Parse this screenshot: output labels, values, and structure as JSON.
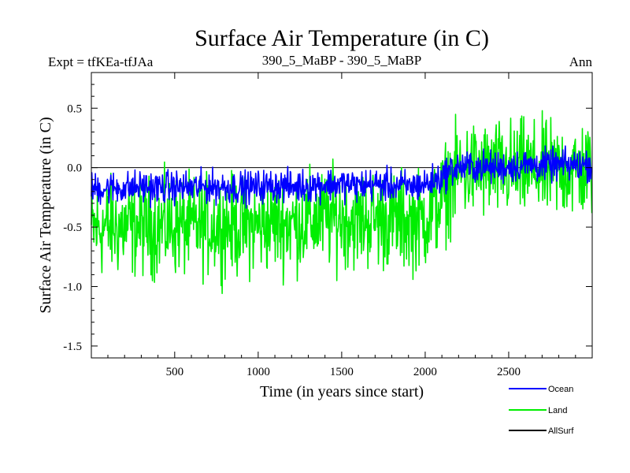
{
  "header": {
    "left": "Expt = tfKEa-tfJAa",
    "center": "390_5_MaBP - 390_5_MaBP",
    "right": "Ann"
  },
  "chart_data": {
    "type": "line",
    "title": "Surface Air Temperature (in C)",
    "xlabel": "Time (in years since start)",
    "ylabel": "Surface Air Temperature (in C)",
    "xlim": [
      1,
      3000
    ],
    "ylim": [
      -1.6,
      0.8
    ],
    "xticks": [
      500,
      1000,
      1500,
      2000,
      2500
    ],
    "xtick_labels": [
      "500",
      "1000",
      "1500",
      "2000",
      "2500"
    ],
    "yticks": [
      -1.5,
      -1.0,
      -0.5,
      0.0,
      0.5
    ],
    "ytick_labels": [
      "-1.5",
      "-1.0",
      "-0.5",
      "0.0",
      "0.5"
    ],
    "reference_line": 0.0,
    "grid": false,
    "legend_position": "bottom-right",
    "series": [
      {
        "name": "Ocean",
        "color": "#0000ff",
        "x": [
          1,
          100,
          200,
          300,
          400,
          500,
          600,
          700,
          800,
          900,
          1000,
          1100,
          1200,
          1300,
          1400,
          1500,
          1600,
          1700,
          1800,
          1900,
          2000,
          2100,
          2150,
          2200,
          2300,
          2400,
          2500,
          2600,
          2700,
          2800,
          2900,
          3000
        ],
        "mean": [
          -0.18,
          -0.17,
          -0.17,
          -0.16,
          -0.17,
          -0.16,
          -0.17,
          -0.16,
          -0.16,
          -0.17,
          -0.16,
          -0.15,
          -0.16,
          -0.15,
          -0.14,
          -0.14,
          -0.15,
          -0.14,
          -0.15,
          -0.16,
          -0.14,
          -0.08,
          -0.02,
          0.0,
          0.01,
          0.0,
          0.01,
          0.02,
          0.02,
          0.02,
          0.02,
          0.03
        ],
        "amplitude": 0.1
      },
      {
        "name": "Land",
        "color": "#00ee00",
        "x": [
          1,
          100,
          200,
          300,
          400,
          500,
          600,
          700,
          800,
          900,
          1000,
          1100,
          1200,
          1300,
          1400,
          1500,
          1600,
          1700,
          1800,
          1900,
          2000,
          2100,
          2150,
          2200,
          2300,
          2400,
          2500,
          2600,
          2700,
          2800,
          2900,
          3000
        ],
        "mean": [
          -0.52,
          -0.5,
          -0.5,
          -0.49,
          -0.5,
          -0.49,
          -0.5,
          -0.49,
          -0.48,
          -0.5,
          -0.49,
          -0.46,
          -0.47,
          -0.45,
          -0.43,
          -0.42,
          -0.44,
          -0.43,
          -0.44,
          -0.46,
          -0.43,
          -0.28,
          -0.12,
          -0.05,
          -0.02,
          -0.03,
          -0.02,
          -0.02,
          -0.03,
          -0.02,
          -0.02,
          -0.02
        ],
        "amplitude": 0.3
      },
      {
        "name": "AllSurf",
        "color": "#000000",
        "x": [],
        "mean": [],
        "amplitude": 0
      }
    ]
  }
}
